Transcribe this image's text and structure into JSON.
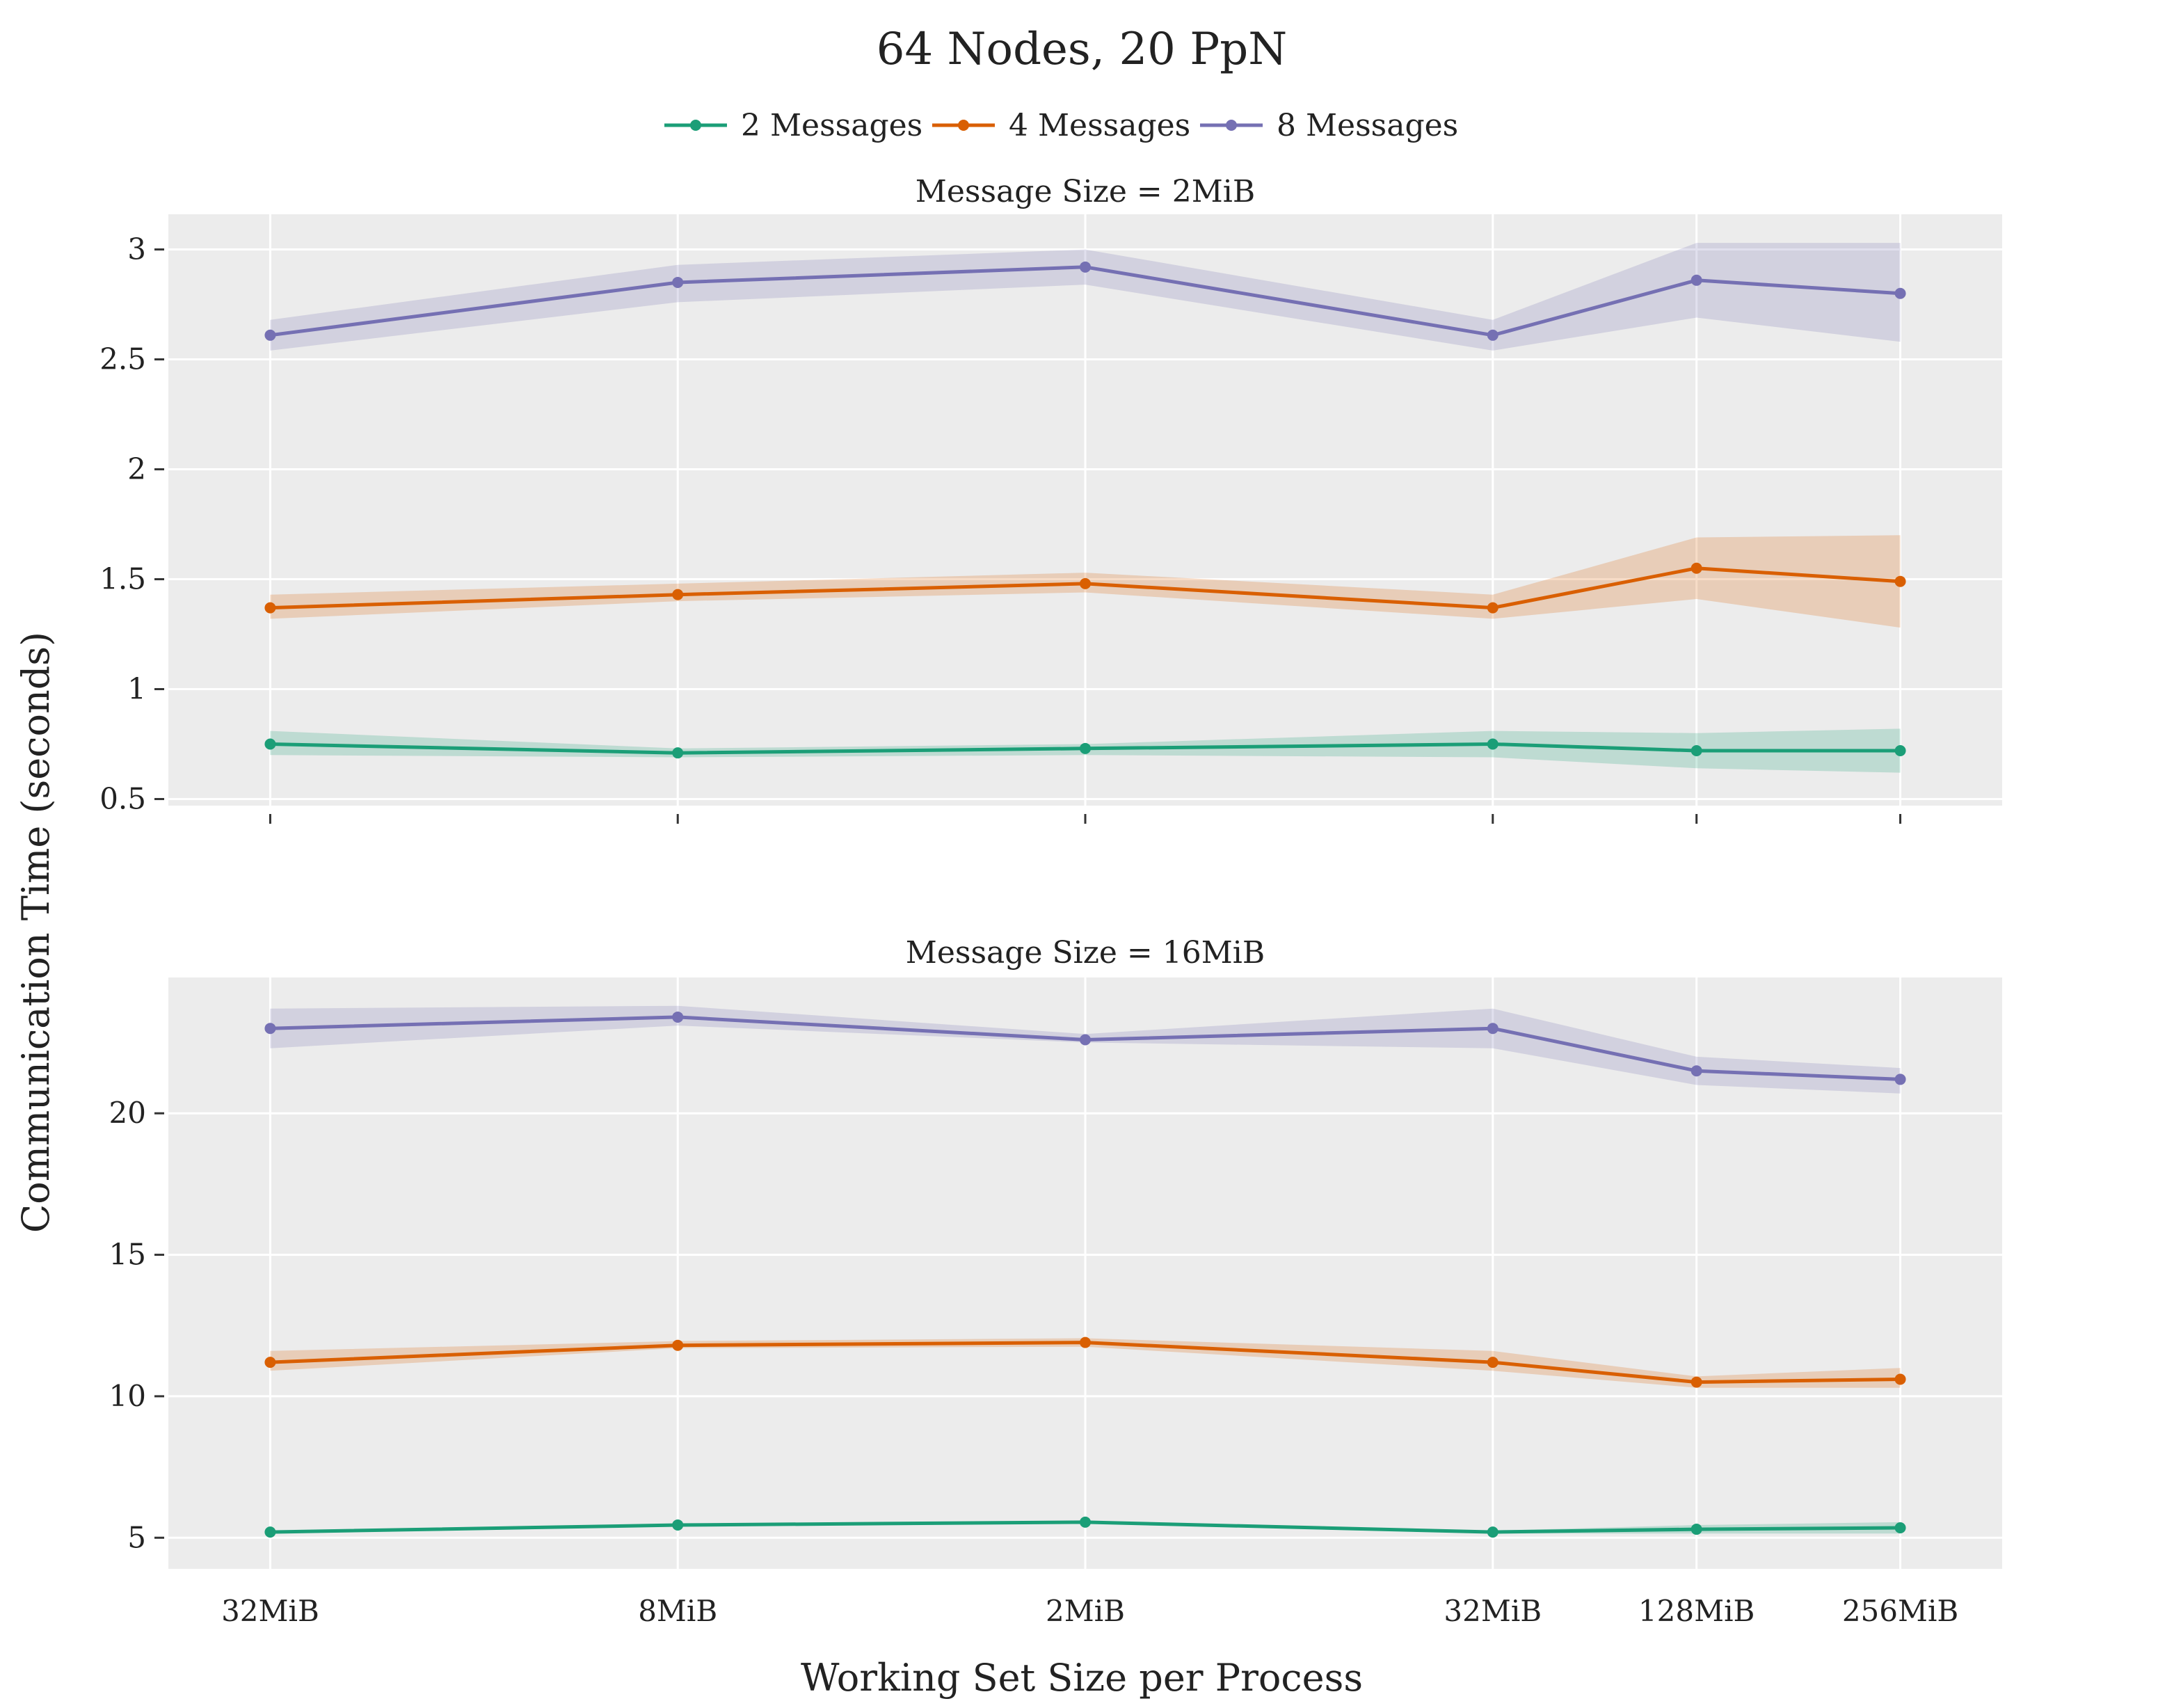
{
  "figure": {
    "title": "64 Nodes, 20 PpN",
    "xlabel": "Working Set Size per Process",
    "ylabel": "Communication Time (seconds)"
  },
  "chart_data": {
    "type": "line",
    "title": "64 Nodes, 20 PpN",
    "xlabel": "Working Set Size per Process",
    "ylabel": "Communication Time (seconds)",
    "categories": [
      "32MiB",
      "8MiB",
      "2MiB",
      "32MiB",
      "128MiB",
      "256MiB"
    ],
    "x": [
      0,
      1,
      2,
      3,
      3.5,
      4
    ],
    "legend": {
      "position": "top-center",
      "entries": [
        "2 Messages",
        "4 Messages",
        "8 Messages"
      ]
    },
    "colors": {
      "2 Messages": "#1b9e77",
      "4 Messages": "#d95f02",
      "8 Messages": "#7570b3"
    },
    "grid": true,
    "panels": [
      {
        "title": "Message Size = 2MiB",
        "ylim": [
          0.47,
          3.16
        ],
        "yticks": [
          0.5,
          1,
          1.5,
          2,
          2.5,
          3
        ],
        "yticklabels": [
          "0.5",
          "1",
          "1.5",
          "2",
          "2.5",
          "3"
        ],
        "series": [
          {
            "name": "2 Messages",
            "values": [
              0.75,
              0.71,
              0.73,
              0.75,
              0.72,
              0.72
            ],
            "lower": [
              0.7,
              0.69,
              0.7,
              0.69,
              0.64,
              0.62
            ],
            "upper": [
              0.81,
              0.73,
              0.75,
              0.81,
              0.8,
              0.82
            ]
          },
          {
            "name": "4 Messages",
            "values": [
              1.37,
              1.43,
              1.48,
              1.37,
              1.55,
              1.49
            ],
            "lower": [
              1.32,
              1.4,
              1.44,
              1.32,
              1.41,
              1.28
            ],
            "upper": [
              1.43,
              1.48,
              1.53,
              1.43,
              1.69,
              1.7
            ]
          },
          {
            "name": "8 Messages",
            "values": [
              2.61,
              2.85,
              2.92,
              2.61,
              2.86,
              2.8
            ],
            "lower": [
              2.54,
              2.76,
              2.84,
              2.54,
              2.69,
              2.58
            ],
            "upper": [
              2.68,
              2.93,
              3.0,
              2.68,
              3.03,
              3.03
            ]
          }
        ]
      },
      {
        "title": "Message Size = 16MiB",
        "ylim": [
          3.9,
          24.8
        ],
        "yticks": [
          5,
          10,
          15,
          20
        ],
        "yticklabels": [
          "5",
          "10",
          "15",
          "20"
        ],
        "series": [
          {
            "name": "2 Messages",
            "values": [
              5.2,
              5.45,
              5.55,
              5.2,
              5.3,
              5.35
            ],
            "lower": [
              5.15,
              5.4,
              5.5,
              5.15,
              5.15,
              5.15
            ],
            "upper": [
              5.25,
              5.5,
              5.6,
              5.25,
              5.45,
              5.55
            ]
          },
          {
            "name": "4 Messages",
            "values": [
              11.2,
              11.8,
              11.9,
              11.2,
              10.5,
              10.6
            ],
            "lower": [
              10.9,
              11.7,
              11.75,
              10.9,
              10.3,
              10.3
            ],
            "upper": [
              11.6,
              11.95,
              12.05,
              11.6,
              10.7,
              11.0
            ]
          },
          {
            "name": "8 Messages",
            "values": [
              23.0,
              23.4,
              22.6,
              23.0,
              21.5,
              21.2
            ],
            "lower": [
              22.3,
              23.1,
              22.5,
              22.3,
              21.0,
              20.7
            ],
            "upper": [
              23.7,
              23.8,
              22.8,
              23.7,
              22.0,
              21.6
            ]
          }
        ]
      }
    ]
  }
}
